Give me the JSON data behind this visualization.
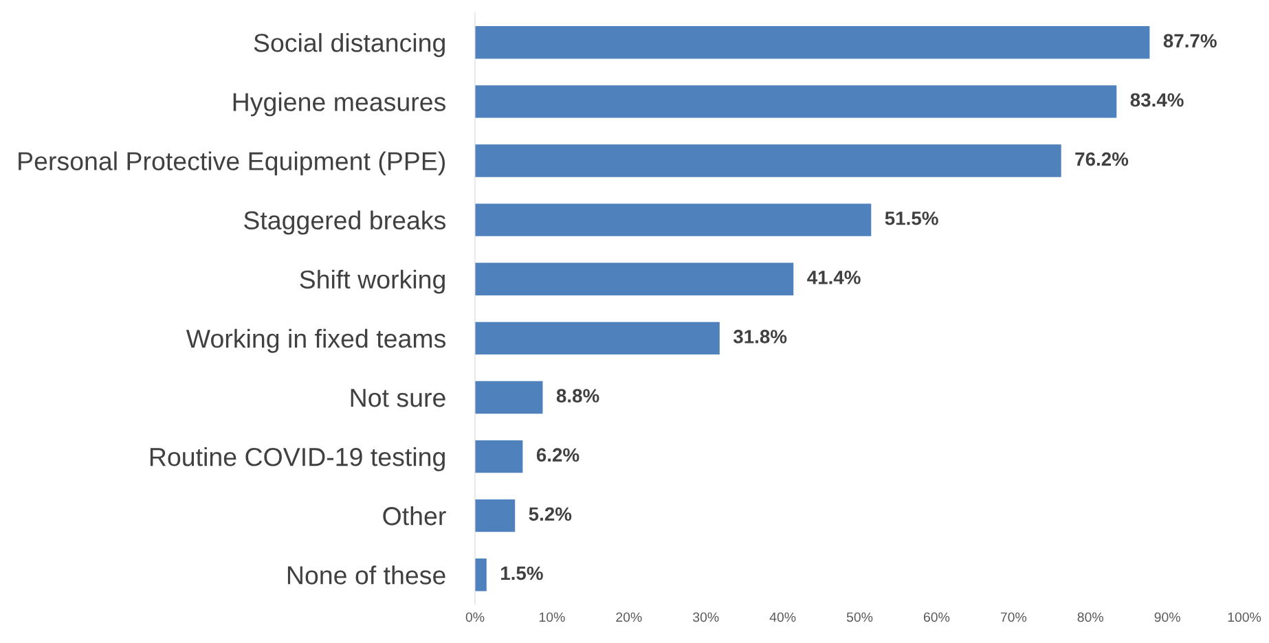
{
  "chart_data": {
    "type": "bar",
    "orientation": "horizontal",
    "categories": [
      "Social distancing",
      "Hygiene measures",
      "Personal Protective Equipment (PPE)",
      "Staggered breaks",
      "Shift working",
      "Working in fixed teams",
      "Not sure",
      "Routine COVID-19 testing",
      "Other",
      "None of these"
    ],
    "values": [
      87.7,
      83.4,
      76.2,
      51.5,
      41.4,
      31.8,
      8.8,
      6.2,
      5.2,
      1.5
    ],
    "value_labels": [
      "87.7%",
      "83.4%",
      "76.2%",
      "51.5%",
      "41.4%",
      "31.8%",
      "8.8%",
      "6.2%",
      "5.2%",
      "1.5%"
    ],
    "color": "#4f81bd",
    "xlim": [
      0,
      100
    ],
    "xticks": [
      {
        "value": 0,
        "label": "0%"
      },
      {
        "value": 10,
        "label": "10%"
      },
      {
        "value": 20,
        "label": "20%"
      },
      {
        "value": 30,
        "label": "30%"
      },
      {
        "value": 40,
        "label": "40%"
      },
      {
        "value": 50,
        "label": "50%"
      },
      {
        "value": 60,
        "label": "60%"
      },
      {
        "value": 70,
        "label": "70%"
      },
      {
        "value": 80,
        "label": "80%"
      },
      {
        "value": 90,
        "label": "90%"
      },
      {
        "value": 100,
        "label": "100%"
      }
    ],
    "grid": false,
    "legend": false
  }
}
